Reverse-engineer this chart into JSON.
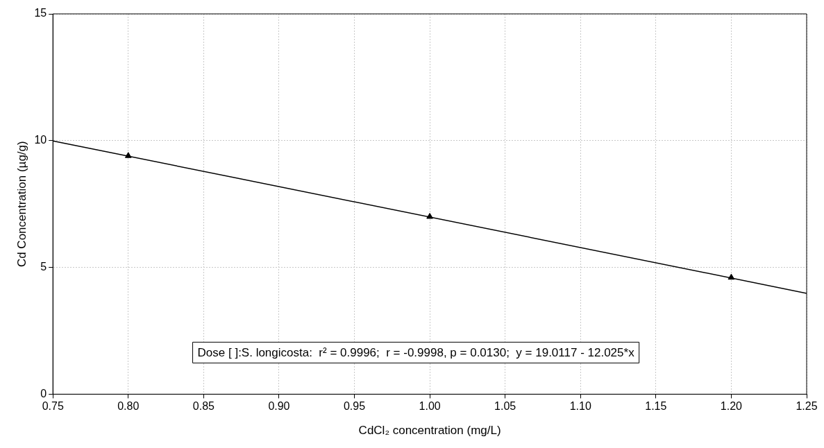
{
  "chart_data": {
    "type": "scatter",
    "xlabel": "CdCl₂ concentration (mg/L)",
    "ylabel": "Cd Concentration (µg/g)",
    "xlim": [
      0.75,
      1.25
    ],
    "xticks": [
      0.75,
      {
        "value": 0.8,
        "label": "0.80"
      },
      0.85,
      {
        "value": 0.9,
        "label": "0.90"
      },
      0.95,
      {
        "value": 1,
        "label": "1.00"
      },
      1.05,
      {
        "value": 1.1,
        "label": "1.10"
      },
      1.15,
      {
        "value": 1.2,
        "label": "1.20"
      },
      1.25
    ],
    "ylim": [
      0,
      15
    ],
    "yticks": [
      0,
      5,
      10,
      15
    ],
    "grid": true,
    "legend": false,
    "series": [
      {
        "type": "scatter",
        "x": [
          0.8,
          1.0,
          1.2
        ],
        "values": [
          9.4,
          7.0,
          4.6
        ],
        "color": "#000000",
        "marker": "triangle"
      },
      {
        "type": "line",
        "x": [
          0.75,
          1.25
        ],
        "values": [
          9.99,
          3.98
        ],
        "color": "#000000",
        "marker": "none",
        "line_style": "solid"
      }
    ],
    "annotations": [
      "Dose [ ]:S. longicosta:  r² = 0.9996;  r = -0.9998, p = 0.0130;  y = 19.0117 - 12.025*x"
    ]
  }
}
